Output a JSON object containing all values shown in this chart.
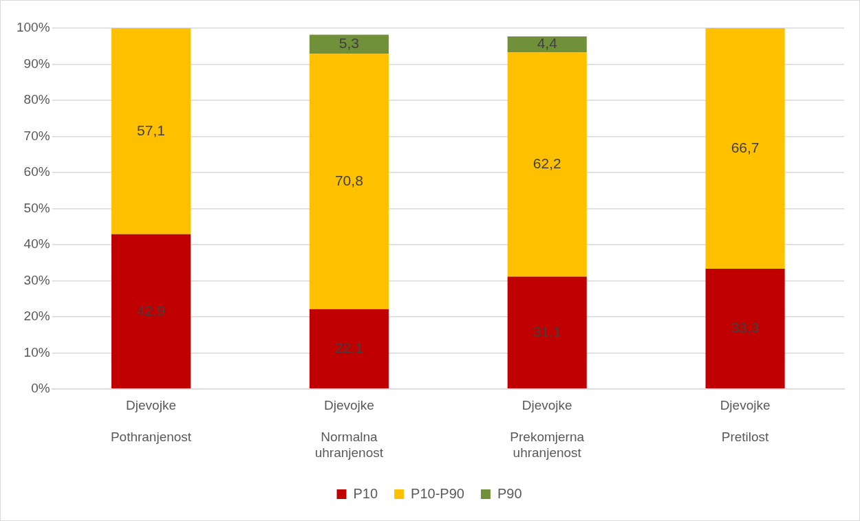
{
  "chart_data": {
    "type": "bar",
    "stacked": true,
    "categories": [
      "Djevojke\nPothranjenost",
      "Djevojke\nNormalna uhranjenost",
      "Djevojke\nPrekomjerna uhranjenost",
      "Djevojke\nPretilost"
    ],
    "series": [
      {
        "name": "P10",
        "color": "#c00000",
        "values": [
          42.9,
          22.1,
          31.1,
          33.3
        ],
        "value_labels": [
          "42,9",
          "22,1",
          "31,1",
          "33,3"
        ]
      },
      {
        "name": "P10-P90",
        "color": "#ffc000",
        "values": [
          57.1,
          70.8,
          62.2,
          66.7
        ],
        "value_labels": [
          "57,1",
          "70,8",
          "62,2",
          "66,7"
        ]
      },
      {
        "name": "P90",
        "color": "#70903a",
        "values": [
          null,
          5.3,
          4.4,
          null
        ],
        "value_labels": [
          null,
          "5,3",
          "4,4",
          null
        ]
      }
    ],
    "ylim": [
      0,
      100
    ],
    "yticks": [
      {
        "value": 0,
        "label": "0%"
      },
      {
        "value": 10,
        "label": "10%"
      },
      {
        "value": 20,
        "label": "20%"
      },
      {
        "value": 30,
        "label": "30%"
      },
      {
        "value": 40,
        "label": "40%"
      },
      {
        "value": 50,
        "label": "50%"
      },
      {
        "value": 60,
        "label": "60%"
      },
      {
        "value": 70,
        "label": "70%"
      },
      {
        "value": 80,
        "label": "80%"
      },
      {
        "value": 90,
        "label": "90%"
      },
      {
        "value": 100,
        "label": "100%"
      }
    ],
    "grid": "y",
    "legend": "bottom"
  }
}
